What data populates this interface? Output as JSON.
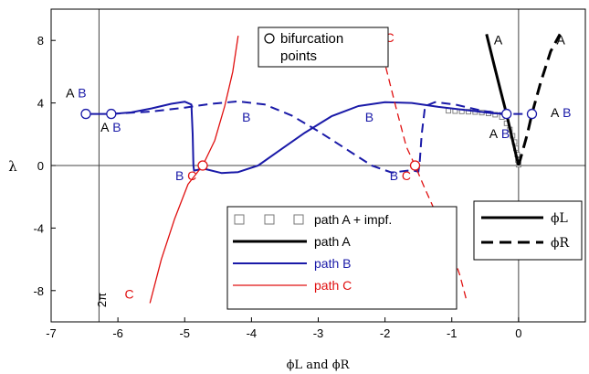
{
  "chart_data": {
    "type": "line",
    "xlabel": "ϕL and ϕR",
    "ylabel": "λ",
    "xlim": [
      -7,
      1
    ],
    "ylim": [
      -10,
      10
    ],
    "x_ticks": [
      -7,
      -6,
      -5,
      -4,
      -3,
      -2,
      -1,
      0
    ],
    "y_ticks": [
      -8,
      -4,
      0,
      4,
      8
    ],
    "x_tick_labels": [
      "-7",
      "-6",
      "-5",
      "-4",
      "-3",
      "-2",
      "-1",
      "0"
    ],
    "y_tick_labels": [
      "-8",
      "-4",
      "0",
      "4",
      "8"
    ],
    "grid": false,
    "reference_lines": {
      "vertical": [
        {
          "x": -6.283,
          "label": "2π"
        },
        {
          "x": 0
        }
      ],
      "horizontal": [
        {
          "y": 0
        }
      ]
    },
    "colors": {
      "path_a": "#000000",
      "path_b": "#1a1aa8",
      "path_c": "#e01010",
      "impf_marker": "#777777"
    },
    "series": [
      {
        "name": "path A + impf.",
        "style": "square-markers",
        "color": "#777777",
        "points": [
          [
            -1.05,
            3.5
          ],
          [
            -0.95,
            3.48
          ],
          [
            -0.85,
            3.46
          ],
          [
            -0.75,
            3.44
          ],
          [
            -0.65,
            3.42
          ],
          [
            -0.55,
            3.38
          ],
          [
            -0.45,
            3.33
          ],
          [
            -0.35,
            3.25
          ],
          [
            -0.25,
            3.1
          ],
          [
            -0.18,
            2.7
          ],
          [
            -0.13,
            2.3
          ],
          [
            -0.09,
            1.9
          ],
          [
            -0.06,
            1.5
          ],
          [
            -0.04,
            1.1
          ],
          [
            -0.02,
            0.7
          ],
          [
            -0.01,
            0.35
          ],
          [
            0.0,
            0.05
          ]
        ]
      },
      {
        "name": "path A",
        "style": "solid",
        "color": "#000000",
        "segments": [
          {
            "role": "ϕL",
            "dash": "solid",
            "points": [
              [
                -0.48,
                8.4
              ],
              [
                -0.37,
                6.5
              ],
              [
                -0.27,
                4.8
              ],
              [
                -0.18,
                3.3
              ],
              [
                -0.1,
                1.8
              ],
              [
                -0.04,
                0.7
              ],
              [
                0.0,
                0.0
              ]
            ]
          },
          {
            "role": "ϕR",
            "dash": "dashed",
            "points": [
              [
                0.0,
                0.0
              ],
              [
                0.13,
                2.0
              ],
              [
                0.2,
                3.3
              ],
              [
                0.33,
                5.3
              ],
              [
                0.48,
                7.3
              ],
              [
                0.62,
                8.4
              ]
            ]
          }
        ]
      },
      {
        "name": "path B",
        "style": "solid",
        "color": "#1a1aa8",
        "segments": [
          {
            "role": "ϕL",
            "dash": "solid",
            "points": [
              [
                -6.5,
                3.3
              ],
              [
                -6.1,
                3.3
              ],
              [
                -5.8,
                3.4
              ],
              [
                -5.5,
                3.65
              ],
              [
                -5.2,
                3.95
              ],
              [
                -5.0,
                4.08
              ],
              [
                -4.9,
                3.9
              ],
              [
                -4.88,
                2.0
              ],
              [
                -4.87,
                0.0
              ],
              [
                -4.86,
                -0.33
              ],
              [
                -4.72,
                -0.2
              ],
              [
                -4.45,
                -0.48
              ],
              [
                -4.2,
                -0.42
              ],
              [
                -3.9,
                0.0
              ],
              [
                -3.6,
                0.9
              ],
              [
                -3.2,
                2.1
              ],
              [
                -2.8,
                3.15
              ],
              [
                -2.4,
                3.8
              ],
              [
                -2.0,
                4.05
              ],
              [
                -1.6,
                4.0
              ],
              [
                -1.2,
                3.75
              ],
              [
                -0.8,
                3.55
              ],
              [
                -0.4,
                3.35
              ],
              [
                -0.18,
                3.3
              ]
            ]
          },
          {
            "role": "ϕR",
            "dash": "dashed",
            "points": [
              [
                -6.1,
                3.3
              ],
              [
                -5.5,
                3.45
              ],
              [
                -5.0,
                3.7
              ],
              [
                -4.6,
                3.95
              ],
              [
                -4.2,
                4.1
              ],
              [
                -3.8,
                3.9
              ],
              [
                -3.4,
                3.2
              ],
              [
                -3.0,
                2.2
              ],
              [
                -2.6,
                1.1
              ],
              [
                -2.2,
                0.0
              ],
              [
                -1.9,
                -0.45
              ],
              [
                -1.6,
                -0.3
              ],
              [
                -1.5,
                -0.4
              ],
              [
                -1.48,
                0.2
              ],
              [
                -1.45,
                2.0
              ],
              [
                -1.4,
                3.8
              ],
              [
                -1.25,
                4.05
              ],
              [
                -0.95,
                3.9
              ],
              [
                -0.55,
                3.5
              ],
              [
                -0.2,
                3.3
              ],
              [
                0.2,
                3.3
              ]
            ]
          }
        ]
      },
      {
        "name": "path C",
        "style": "solid",
        "color": "#e01010",
        "segments": [
          {
            "role": "ϕL",
            "dash": "solid",
            "points": [
              [
                -5.52,
                -8.8
              ],
              [
                -5.35,
                -6.0
              ],
              [
                -5.15,
                -3.4
              ],
              [
                -4.95,
                -1.2
              ],
              [
                -4.73,
                0.0
              ],
              [
                -4.55,
                1.6
              ],
              [
                -4.4,
                3.8
              ],
              [
                -4.28,
                6.0
              ],
              [
                -4.2,
                8.3
              ]
            ]
          },
          {
            "role": "ϕR",
            "dash": "dashed",
            "points": [
              [
                -2.18,
                8.4
              ],
              [
                -2.0,
                6.5
              ],
              [
                -1.83,
                3.6
              ],
              [
                -1.68,
                1.2
              ],
              [
                -1.55,
                0.0
              ],
              [
                -1.4,
                -1.5
              ],
              [
                -1.2,
                -3.4
              ],
              [
                -1.0,
                -5.5
              ],
              [
                -0.88,
                -7.0
              ],
              [
                -0.78,
                -8.6
              ]
            ]
          }
        ]
      }
    ],
    "bifurcation_points": [
      {
        "x": -6.48,
        "y": 3.3,
        "color": "#1a1aa8"
      },
      {
        "x": -6.1,
        "y": 3.3,
        "color": "#1a1aa8"
      },
      {
        "x": -0.18,
        "y": 3.3,
        "color": "#1a1aa8"
      },
      {
        "x": 0.2,
        "y": 3.3,
        "color": "#1a1aa8"
      },
      {
        "x": -4.73,
        "y": 0.0,
        "color": "#e01010"
      },
      {
        "x": -1.55,
        "y": 0.0,
        "color": "#e01010"
      }
    ],
    "annotations": [
      {
        "text": "A",
        "x": -6.78,
        "y": 4.35,
        "color": "#000000"
      },
      {
        "text": "B",
        "x": -6.6,
        "y": 4.35,
        "color": "#1a1aa8"
      },
      {
        "text": "A",
        "x": -6.26,
        "y": 2.15,
        "color": "#000000"
      },
      {
        "text": "B",
        "x": -6.08,
        "y": 2.15,
        "color": "#1a1aa8"
      },
      {
        "text": "B",
        "x": -4.14,
        "y": 2.8,
        "color": "#1a1aa8"
      },
      {
        "text": "B",
        "x": -2.3,
        "y": 2.8,
        "color": "#1a1aa8"
      },
      {
        "text": "B",
        "x": -5.14,
        "y": -0.95,
        "color": "#1a1aa8"
      },
      {
        "text": "C",
        "x": -4.96,
        "y": -0.95,
        "color": "#e01010"
      },
      {
        "text": "B",
        "x": -1.93,
        "y": -0.95,
        "color": "#1a1aa8"
      },
      {
        "text": "C",
        "x": -1.75,
        "y": -0.95,
        "color": "#e01010"
      },
      {
        "text": "C",
        "x": -5.9,
        "y": -8.5,
        "color": "#e01010"
      },
      {
        "text": "C",
        "x": -2.0,
        "y": 7.9,
        "color": "#e01010"
      },
      {
        "text": "A",
        "x": -0.37,
        "y": 7.75,
        "color": "#000000"
      },
      {
        "text": "A",
        "x": 0.57,
        "y": 7.75,
        "color": "#000000"
      },
      {
        "text": "A",
        "x": -0.44,
        "y": 1.75,
        "color": "#000000"
      },
      {
        "text": "B",
        "x": -0.26,
        "y": 1.75,
        "color": "#1a1aa8"
      },
      {
        "text": "A",
        "x": 0.48,
        "y": 3.1,
        "color": "#000000"
      },
      {
        "text": "B",
        "x": 0.66,
        "y": 3.1,
        "color": "#1a1aa8"
      }
    ],
    "vertical_line_label": "2π",
    "bifurcation_legend": {
      "label_line1": "bifurcation",
      "label_line2": "points"
    },
    "legend": {
      "placement": "lower-center",
      "entries": [
        {
          "label": "path A + impf.",
          "color": "#000000",
          "style": "square-markers"
        },
        {
          "label": "path A",
          "color": "#000000",
          "style": "solid"
        },
        {
          "label": "path B",
          "color": "#1a1aa8",
          "style": "solid"
        },
        {
          "label": "path C",
          "color": "#e01010",
          "style": "solid"
        }
      ]
    },
    "phi_legend": {
      "placement": "lower-right",
      "entries": [
        {
          "label": "ϕL",
          "style": "solid"
        },
        {
          "label": "ϕR",
          "style": "dashed"
        }
      ]
    }
  }
}
